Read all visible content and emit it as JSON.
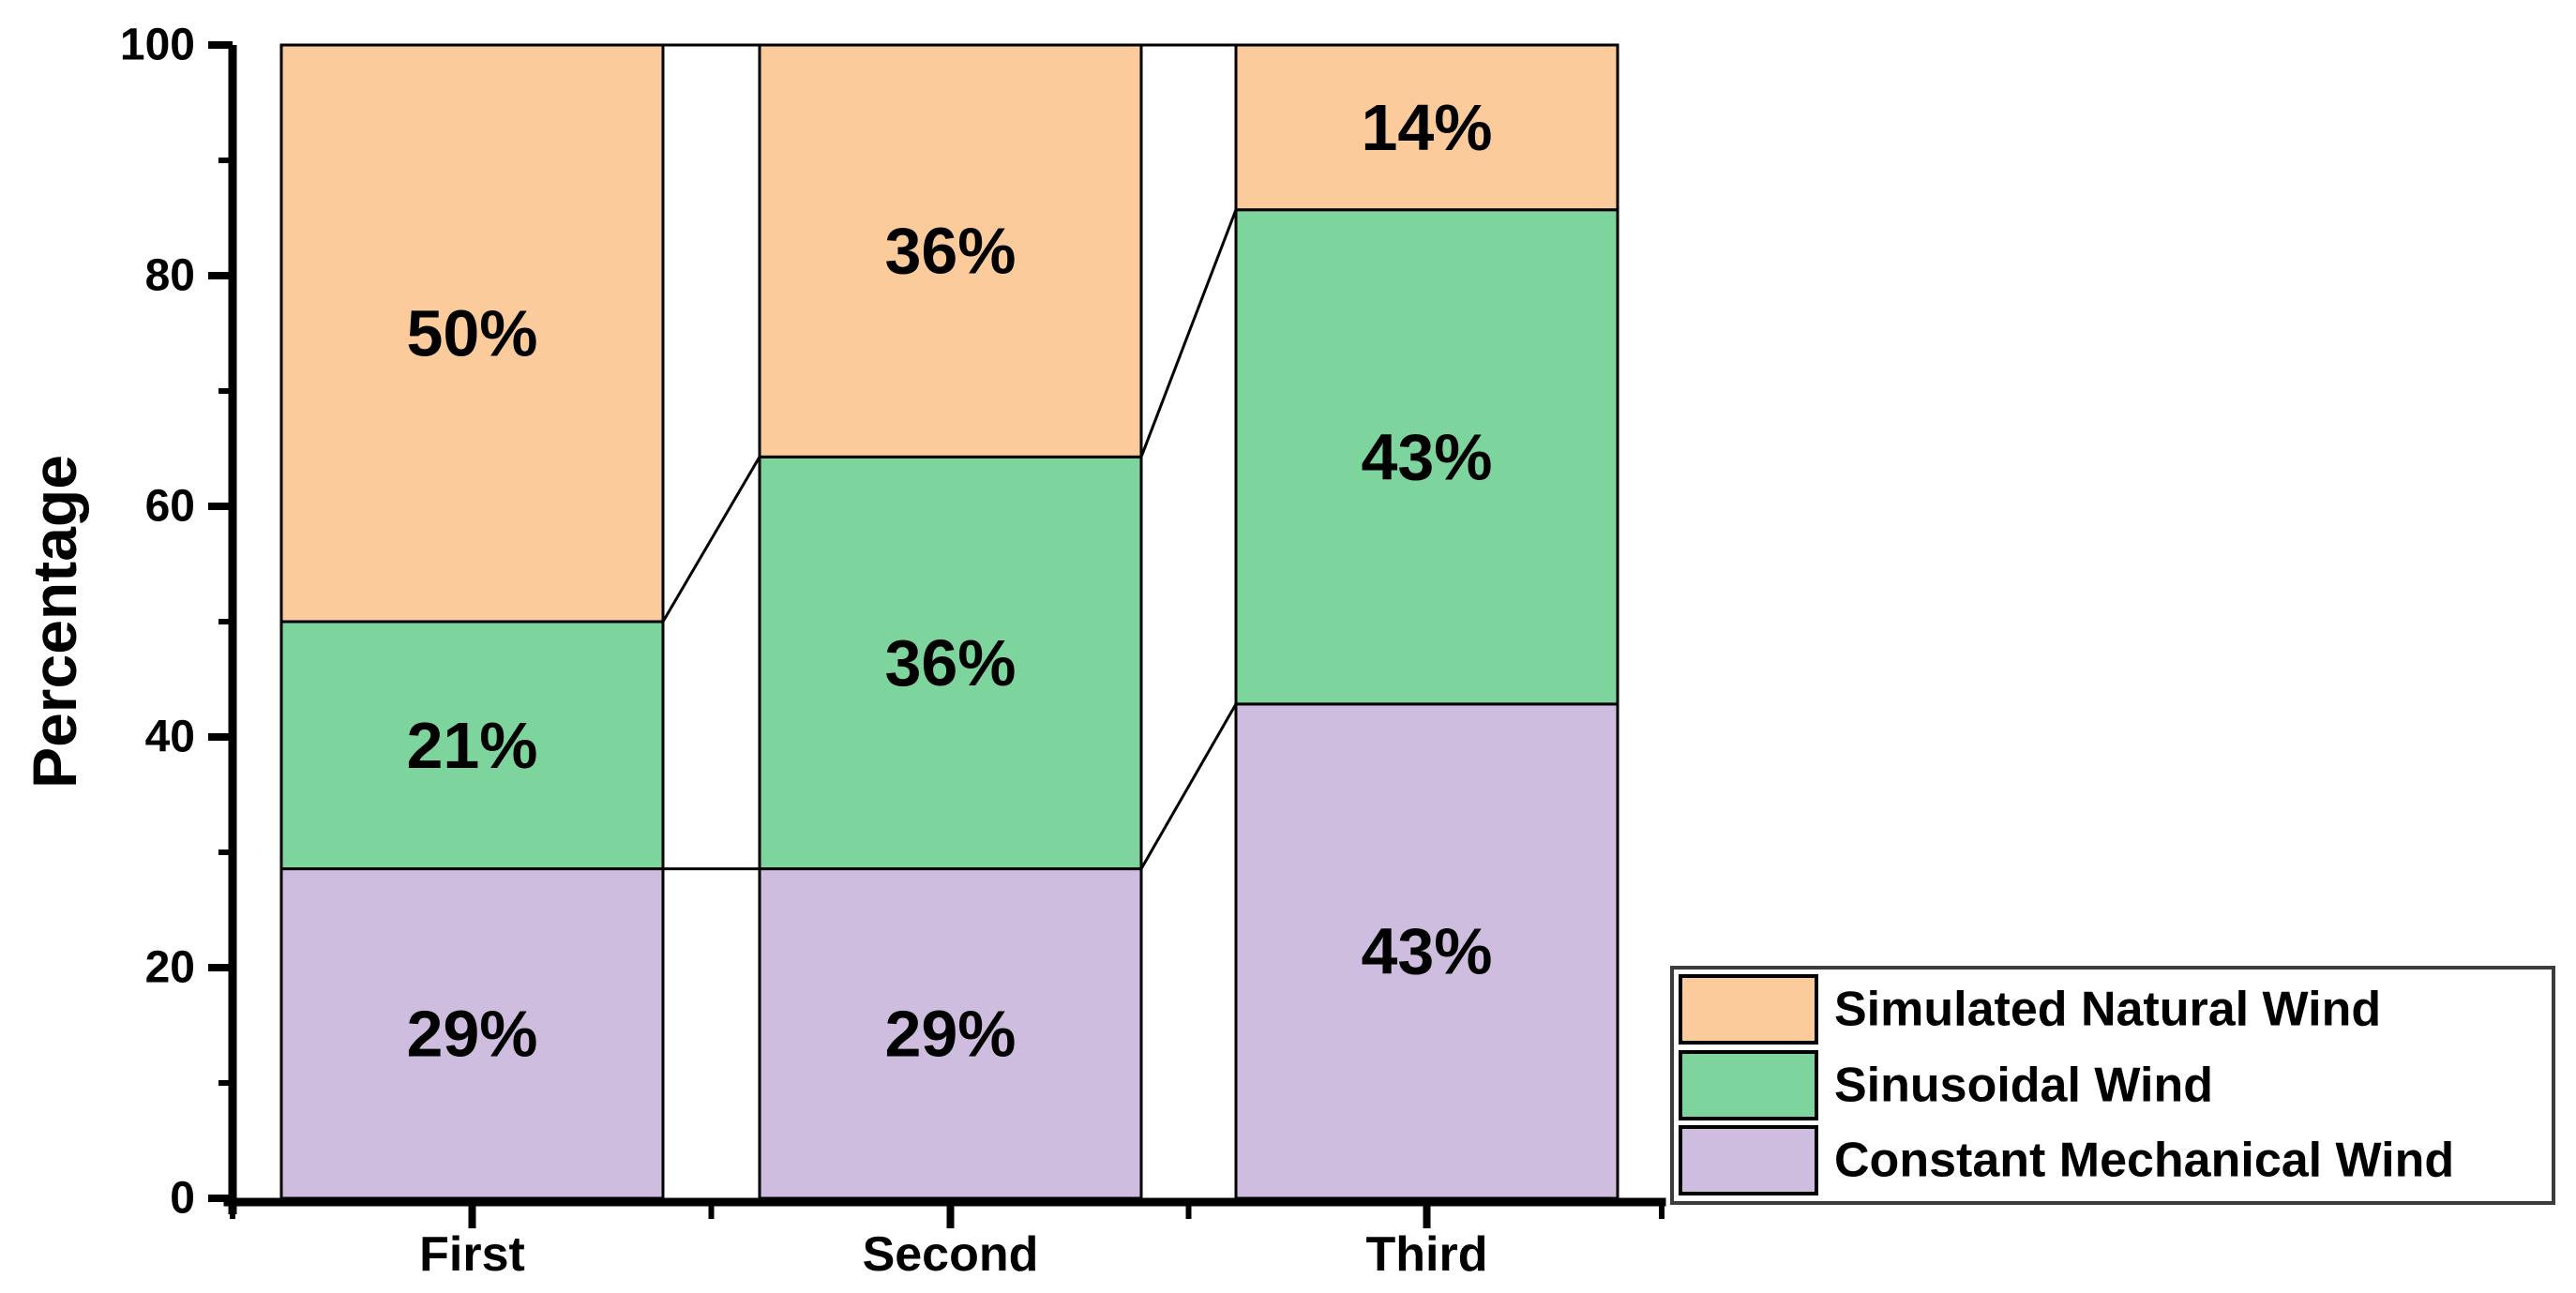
{
  "chart_data": {
    "type": "bar",
    "subtype": "stacked-percentage-column",
    "title": "",
    "xlabel": "",
    "ylabel": "Percentage",
    "ylim": [
      0,
      100
    ],
    "y_major_ticks": [
      0,
      20,
      40,
      60,
      80,
      100
    ],
    "y_minor_ticks": [
      10,
      30,
      50,
      70,
      90
    ],
    "grid": false,
    "categories": [
      "First",
      "Second",
      "Third"
    ],
    "series": [
      {
        "name": "Constant Mechanical Wind",
        "color": "#CEBDDF",
        "values_pct": [
          28.5714,
          28.5714,
          42.8571
        ],
        "segment_labels": [
          "29%",
          "29%",
          "43%"
        ]
      },
      {
        "name": "Sinusoidal Wind",
        "color": "#7DD49C",
        "values_pct": [
          21.4286,
          35.7143,
          42.8571
        ],
        "segment_labels": [
          "21%",
          "36%",
          "43%"
        ]
      },
      {
        "name": "Simulated Natural Wind",
        "color": "#FCCB9C",
        "values_pct": [
          50.0,
          35.7143,
          14.2857
        ],
        "segment_labels": [
          "50%",
          "36%",
          "14%"
        ]
      }
    ],
    "connector_lines_between_bars": true,
    "bar_border_color": "#000000",
    "axis_color": "#000000",
    "text_color": "#000000",
    "legend": {
      "position": "bottom-right",
      "border_color": "#3c3c3c",
      "background": "#ffffff",
      "entries": [
        {
          "label": "Simulated Natural Wind",
          "color": "#FCCB9C"
        },
        {
          "label": "Sinusoidal Wind",
          "color": "#7DD49C"
        },
        {
          "label": "Constant Mechanical Wind",
          "color": "#CEBDDF"
        }
      ]
    }
  }
}
